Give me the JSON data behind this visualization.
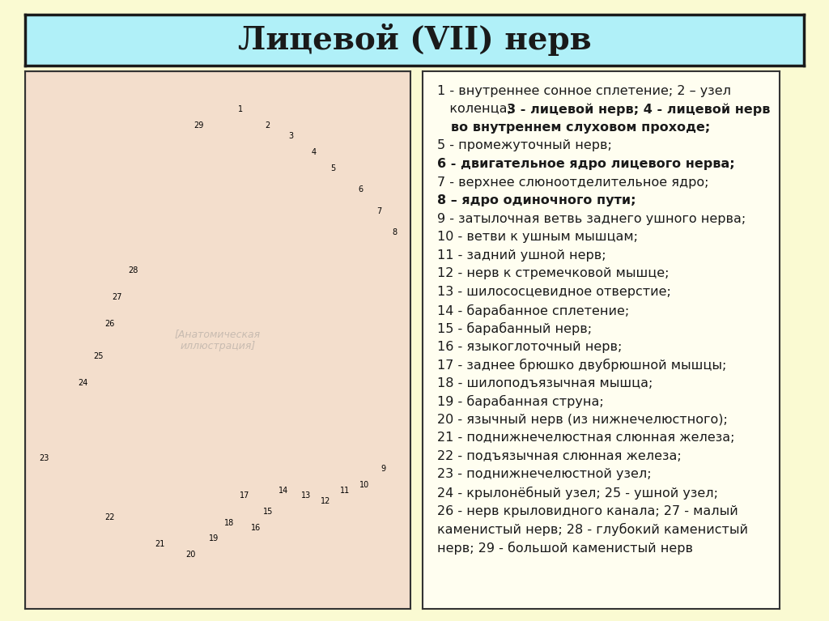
{
  "title": "Лицевой (VII) нерв",
  "bg_color": "#FAFAD2",
  "title_bg": "#B0F0F8",
  "title_border": "#1a1a1a",
  "title_fontsize": 28,
  "legend_lines": [
    {
      "text": "1 - внутреннее сонное сплетение; 2 – узел",
      "bold": false
    },
    {
      "text": "   коленца; 3 - лицевой нерв; 4 - лицевой нерв",
      "bold": true,
      "mixed": true,
      "parts": [
        {
          "text": "   коленца; ",
          "bold": false
        },
        {
          "text": "3 - лицевой нерв; 4 - лицевой нерв",
          "bold": true
        }
      ]
    },
    {
      "text": "   во внутреннем слуховом проходе;",
      "bold": true
    },
    {
      "text": "5 - промежуточный нерв;",
      "bold": false
    },
    {
      "text": "6 - двигательное ядро лицевого нерва;",
      "bold": true
    },
    {
      "text": "7 - верхнее слюноотделительное ядро;",
      "bold": false
    },
    {
      "text": "8 – ядро одиночного пути;",
      "bold": true
    },
    {
      "text": "9 - затылочная ветвь заднего ушного нерва;",
      "bold": false
    },
    {
      "text": "10 - ветви к ушным мышцам;",
      "bold": false
    },
    {
      "text": "11 - задний ушной нерв;",
      "bold": false
    },
    {
      "text": "12 - нерв к стремечковой мышце;",
      "bold": false
    },
    {
      "text": "13 - шилососцевидное отверстие;",
      "bold": false
    },
    {
      "text": "14 - барабанное сплетение;",
      "bold": false
    },
    {
      "text": "15 - барабанный нерв;",
      "bold": false
    },
    {
      "text": "16 - языкоглоточный нерв;",
      "bold": false
    },
    {
      "text": "17 - заднее брюшко двубрюшной мышцы;",
      "bold": false
    },
    {
      "text": "18 - шилоподъязычная мышца;",
      "bold": false
    },
    {
      "text": "19 - барабанная струна;",
      "bold": false
    },
    {
      "text": "20 - язычный нерв (из нижнечелюстного);",
      "bold": false
    },
    {
      "text": "21 - поднижнечелюстная слюнная железа;",
      "bold": false
    },
    {
      "text": "22 - подъязычная слюнная железа;",
      "bold": false
    },
    {
      "text": "23 - поднижнечелюстной узел;",
      "bold": false
    },
    {
      "text": "24 - крылонёбный узел; 25 - ушной узел;",
      "bold": false
    },
    {
      "text": "26 - нерв крыловидного канала; 27 - малый",
      "bold": false
    },
    {
      "text": "каменистый нерв; 28 - глубокий каменистый",
      "bold": false
    },
    {
      "text": "нерв; 29 - большой каменистый нерв",
      "bold": false
    }
  ],
  "image_border": "#333333",
  "text_color": "#1a1a1a",
  "legend_fontsize": 11.5,
  "panel_split": 0.505
}
